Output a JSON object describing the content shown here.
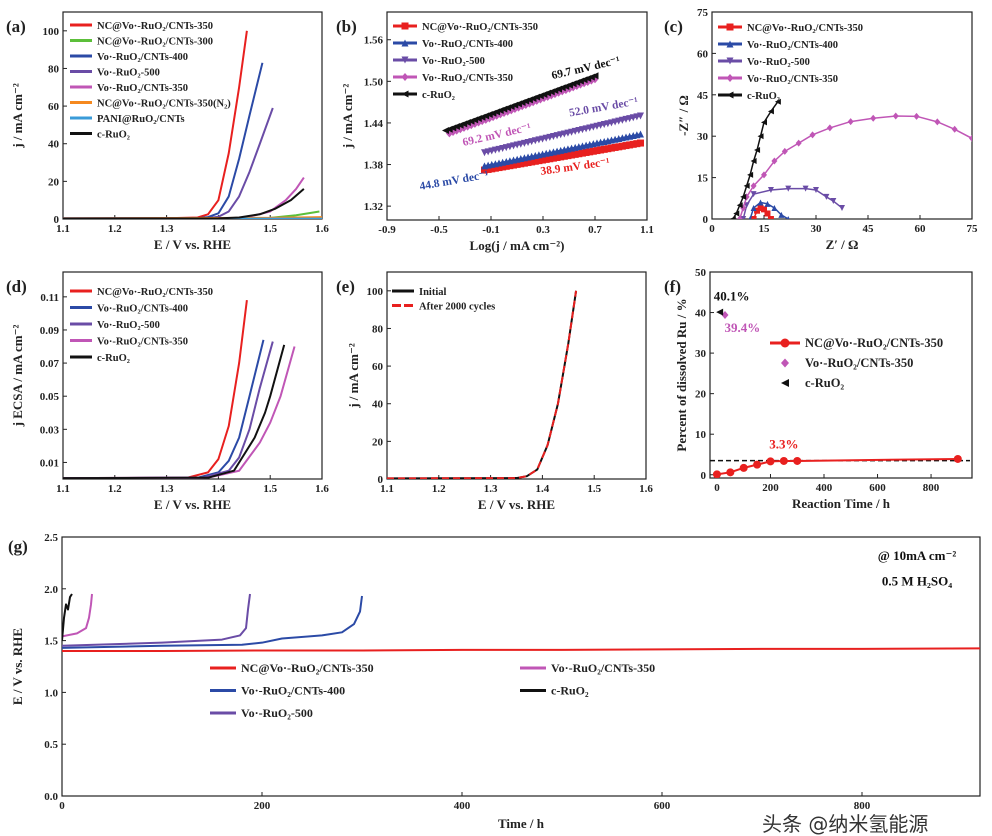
{
  "colors": {
    "red": "#e8201f",
    "green": "#5cbf3a",
    "blue": "#2b4aa6",
    "purple": "#6a4ca6",
    "magenta": "#c056b6",
    "orange": "#f5891f",
    "lightblue": "#3a9bd8",
    "black": "#111111"
  },
  "watermark": "头条 @纳米氢能源",
  "chart_data": [
    {
      "id": "a",
      "panel_label": "(a)",
      "type": "line",
      "xlabel": "E / V vs. RHE",
      "ylabel": "j / mA cm⁻²",
      "xlim": [
        1.1,
        1.6
      ],
      "ylim": [
        0,
        110
      ],
      "xticks": [
        1.1,
        1.2,
        1.3,
        1.4,
        1.5,
        1.6
      ],
      "xtick_labels": [
        "1.1",
        "1.2",
        "1.3",
        "1.4",
        "1.5",
        "1.6"
      ],
      "yticks": [
        0,
        20,
        40,
        60,
        80,
        100
      ],
      "ytick_labels": [
        "0",
        "20",
        "40",
        "60",
        "80",
        "100"
      ],
      "legend": "top-left",
      "series": [
        {
          "name": "NC@Vo·-RuO₂/CNTs-350",
          "color": "red",
          "x": [
            1.1,
            1.3,
            1.36,
            1.38,
            1.4,
            1.42,
            1.44,
            1.455
          ],
          "y": [
            0.3,
            0.4,
            0.8,
            2.5,
            10,
            35,
            70,
            100
          ]
        },
        {
          "name": "NC@Vo·-RuO₂/CNTs-300",
          "color": "green",
          "x": [
            1.1,
            1.45,
            1.5,
            1.55,
            1.595
          ],
          "y": [
            0.2,
            0.3,
            0.6,
            2,
            4
          ]
        },
        {
          "name": "Vo·-RuO₂/CNTs-400",
          "color": "blue",
          "x": [
            1.1,
            1.36,
            1.38,
            1.4,
            1.42,
            1.44,
            1.46,
            1.485
          ],
          "y": [
            0.3,
            0.4,
            1,
            3,
            12,
            32,
            55,
            83
          ]
        },
        {
          "name": "Vo·-RuO₂-500",
          "color": "purple",
          "x": [
            1.1,
            1.38,
            1.4,
            1.42,
            1.44,
            1.46,
            1.48,
            1.505
          ],
          "y": [
            0.3,
            0.5,
            1.2,
            4,
            12,
            25,
            40,
            59
          ]
        },
        {
          "name": "Vo·-RuO₂/CNTs-350",
          "color": "magenta",
          "x": [
            1.1,
            1.42,
            1.45,
            1.5,
            1.53,
            1.55,
            1.565
          ],
          "y": [
            0.2,
            0.3,
            0.6,
            4,
            10,
            16,
            22
          ]
        },
        {
          "name": "NC@Vo·-RuO₂/CNTs-350(N₂)",
          "color": "orange",
          "x": [
            1.1,
            1.5,
            1.6
          ],
          "y": [
            0.3,
            0.6,
            1.0
          ]
        },
        {
          "name": "PANI@RuO₂/CNTs",
          "color": "lightblue",
          "x": [
            1.1,
            1.6
          ],
          "y": [
            0.1,
            0.2
          ]
        },
        {
          "name": "c-RuO₂",
          "color": "black",
          "x": [
            1.1,
            1.4,
            1.44,
            1.48,
            1.51,
            1.54,
            1.565
          ],
          "y": [
            0.2,
            0.3,
            0.8,
            2.5,
            5.5,
            10,
            16
          ]
        }
      ]
    },
    {
      "id": "b",
      "panel_label": "(b)",
      "type": "line",
      "xlabel": "Log(j / mA cm⁻²)",
      "ylabel": "j / mA cm⁻²",
      "xlim": [
        -0.9,
        1.1
      ],
      "ylim": [
        1.3,
        1.6
      ],
      "xticks": [
        -0.9,
        -0.5,
        -0.1,
        0.3,
        0.7,
        1.1
      ],
      "xtick_labels": [
        "-0.9",
        "-0.5",
        "-0.1",
        "0.3",
        "0.7",
        "1.1"
      ],
      "yticks": [
        1.32,
        1.38,
        1.44,
        1.5,
        1.56
      ],
      "ytick_labels": [
        "1.32",
        "1.38",
        "1.44",
        "1.50",
        "1.56"
      ],
      "legend": "top-left",
      "series": [
        {
          "name": "NC@Vo·-RuO₂/CNTs-350",
          "color": "red",
          "marker": "square",
          "x": [
            -0.15,
            1.05
          ],
          "y": [
            1.372,
            1.411
          ]
        },
        {
          "name": "Vo·-RuO₂/CNTs-400",
          "color": "blue",
          "marker": "triangle-up",
          "x": [
            -0.15,
            1.05
          ],
          "y": [
            1.378,
            1.424
          ]
        },
        {
          "name": "Vo·-RuO₂-500",
          "color": "purple",
          "marker": "triangle-down",
          "x": [
            -0.15,
            1.05
          ],
          "y": [
            1.397,
            1.45
          ]
        },
        {
          "name": "Vo·-RuO₂/CNTs-350",
          "color": "magenta",
          "marker": "diamond",
          "x": [
            -0.42,
            0.7
          ],
          "y": [
            1.425,
            1.503
          ]
        },
        {
          "name": "c-RuO₂",
          "color": "black",
          "marker": "triangle-left",
          "x": [
            -0.45,
            0.7
          ],
          "y": [
            1.429,
            1.508
          ]
        }
      ],
      "annotations": [
        {
          "text": "69.7 mV dec⁻¹",
          "color": "black",
          "x": 0.35,
          "y": 1.513,
          "angle": -13
        },
        {
          "text": "69.2 mV dec⁻¹",
          "color": "magenta",
          "x": -0.05,
          "y": 1.418,
          "angle": -13
        },
        {
          "text": "52.0 mV dec⁻¹",
          "color": "purple",
          "x": 0.77,
          "y": 1.458,
          "angle": -10
        },
        {
          "text": "44.8 mV dec⁻¹",
          "color": "blue",
          "x": -0.38,
          "y": 1.352,
          "angle": -10
        },
        {
          "text": "38.9 mV dec⁻¹",
          "color": "red",
          "x": 0.55,
          "y": 1.372,
          "angle": -8
        }
      ]
    },
    {
      "id": "c",
      "panel_label": "(c)",
      "type": "line",
      "xlabel": "Z′ / Ω",
      "ylabel": "-Z″ / Ω",
      "xlim": [
        0,
        75
      ],
      "ylim": [
        0,
        75
      ],
      "xticks": [
        0,
        15,
        30,
        45,
        60,
        75
      ],
      "xtick_labels": [
        "0",
        "15",
        "30",
        "45",
        "60",
        "75"
      ],
      "yticks": [
        0,
        15,
        30,
        45,
        60,
        75
      ],
      "ytick_labels": [
        "0",
        "15",
        "30",
        "45",
        "60",
        "75"
      ],
      "legend": "top-left",
      "series": [
        {
          "name": "NC@Vo·-RuO₂/CNTs-350",
          "color": "red",
          "marker": "square",
          "x": [
            12,
            13,
            14,
            15,
            16,
            17
          ],
          "y": [
            0,
            3,
            4,
            3.5,
            2,
            0
          ]
        },
        {
          "name": "Vo·-RuO₂/CNTs-400",
          "color": "blue",
          "marker": "triangle-up",
          "x": [
            11,
            12,
            14,
            16,
            18,
            20,
            22
          ],
          "y": [
            0,
            4,
            6,
            5.5,
            4,
            1.5,
            0
          ]
        },
        {
          "name": "Vo·-RuO₂-500",
          "color": "purple",
          "marker": "triangle-down",
          "x": [
            9,
            10,
            12,
            17,
            22,
            27,
            30,
            33,
            35,
            37.5
          ],
          "y": [
            0,
            5,
            9,
            10.5,
            11,
            11,
            10.5,
            8,
            6.5,
            4
          ]
        },
        {
          "name": "Vo·-RuO₂/CNTs-350",
          "color": "magenta",
          "marker": "diamond",
          "x": [
            8,
            9,
            10,
            12,
            15,
            18,
            21,
            25,
            29,
            34,
            40,
            46.5,
            53,
            59,
            65,
            70,
            75
          ],
          "y": [
            0,
            4,
            8,
            12,
            16,
            21,
            24.5,
            27.5,
            30.5,
            33,
            35.3,
            36.5,
            37.3,
            37.2,
            35.2,
            32.5,
            29.2
          ]
        },
        {
          "name": "c-RuO₂",
          "color": "black",
          "marker": "triangle-left",
          "x": [
            6,
            7,
            8,
            9,
            10,
            11,
            12,
            13,
            14,
            15,
            17,
            19
          ],
          "y": [
            0,
            2,
            5,
            8,
            12,
            16,
            21,
            25,
            30,
            35,
            39,
            42.5
          ]
        }
      ]
    },
    {
      "id": "d",
      "panel_label": "(d)",
      "type": "line",
      "xlabel": "E / V vs. RHE",
      "ylabel": "j ECSA / mA cm⁻²",
      "xlim": [
        1.1,
        1.6
      ],
      "ylim": [
        0,
        0.125
      ],
      "xticks": [
        1.1,
        1.2,
        1.3,
        1.4,
        1.5,
        1.6
      ],
      "xtick_labels": [
        "1.1",
        "1.2",
        "1.3",
        "1.4",
        "1.5",
        "1.6"
      ],
      "yticks": [
        0.01,
        0.03,
        0.05,
        0.07,
        0.09,
        0.11
      ],
      "ytick_labels": [
        "0.01",
        "0.03",
        "0.05",
        "0.07",
        "0.09",
        "0.11"
      ],
      "legend": "top-left",
      "series": [
        {
          "name": "NC@Vo·-RuO₂/CNTs-350",
          "color": "red",
          "x": [
            1.1,
            1.34,
            1.38,
            1.4,
            1.42,
            1.44,
            1.455
          ],
          "y": [
            0.0005,
            0.0008,
            0.004,
            0.012,
            0.032,
            0.07,
            0.108
          ]
        },
        {
          "name": "Vo·-RuO₂/CNTs-400",
          "color": "blue",
          "x": [
            1.1,
            1.36,
            1.4,
            1.42,
            1.44,
            1.46,
            1.487
          ],
          "y": [
            0.0005,
            0.0008,
            0.004,
            0.011,
            0.025,
            0.05,
            0.084
          ]
        },
        {
          "name": "Vo·-RuO₂-500",
          "color": "purple",
          "x": [
            1.1,
            1.37,
            1.42,
            1.44,
            1.46,
            1.48,
            1.505
          ],
          "y": [
            0.0005,
            0.0008,
            0.005,
            0.013,
            0.03,
            0.055,
            0.083
          ]
        },
        {
          "name": "Vo·-RuO₂/CNTs-350",
          "color": "magenta",
          "x": [
            1.1,
            1.38,
            1.44,
            1.48,
            1.5,
            1.52,
            1.547
          ],
          "y": [
            0.0005,
            0.0008,
            0.005,
            0.022,
            0.034,
            0.05,
            0.08
          ]
        },
        {
          "name": "c-RuO₂",
          "color": "black",
          "x": [
            1.1,
            1.38,
            1.43,
            1.47,
            1.49,
            1.5,
            1.527
          ],
          "y": [
            0.0005,
            0.0008,
            0.005,
            0.025,
            0.04,
            0.05,
            0.081
          ]
        }
      ]
    },
    {
      "id": "e",
      "panel_label": "(e)",
      "type": "line",
      "xlabel": "E / V vs. RHE",
      "ylabel": "j / mA cm⁻²",
      "xlim": [
        1.1,
        1.6
      ],
      "ylim": [
        0,
        110
      ],
      "xticks": [
        1.1,
        1.2,
        1.3,
        1.4,
        1.5,
        1.6
      ],
      "xtick_labels": [
        "1.1",
        "1.2",
        "1.3",
        "1.4",
        "1.5",
        "1.6"
      ],
      "yticks": [
        0,
        20,
        40,
        60,
        80,
        100
      ],
      "ytick_labels": [
        "0",
        "20",
        "40",
        "60",
        "80",
        "100"
      ],
      "legend": "top-left",
      "series": [
        {
          "name": "Initial",
          "color": "black",
          "x": [
            1.1,
            1.35,
            1.37,
            1.39,
            1.41,
            1.43,
            1.45,
            1.465
          ],
          "y": [
            0.3,
            0.5,
            1.5,
            5,
            18,
            40,
            72,
            100
          ]
        },
        {
          "name": "After 2000 cycles",
          "color": "red",
          "dash": true,
          "x": [
            1.1,
            1.35,
            1.37,
            1.39,
            1.41,
            1.43,
            1.45,
            1.465
          ],
          "y": [
            0.3,
            0.5,
            1.5,
            5,
            18,
            40,
            72,
            100
          ]
        }
      ]
    },
    {
      "id": "f",
      "panel_label": "(f)",
      "type": "scatter",
      "xlabel": "Reaction Time / h",
      "ylabel": "Percent of dissolved Ru / %",
      "xlim": [
        -26,
        953
      ],
      "ylim": [
        -0.8,
        50
      ],
      "xticks": [
        0,
        200,
        400,
        600,
        800
      ],
      "xtick_labels": [
        "0",
        "200",
        "400",
        "600",
        "800"
      ],
      "yticks": [
        0,
        10,
        20,
        30,
        40,
        50
      ],
      "ytick_labels": [
        "0",
        "10",
        "20",
        "30",
        "40",
        "50"
      ],
      "legend": "center-right",
      "reference_line": {
        "y": 3.5,
        "style": "dashed",
        "color": "black"
      },
      "series": [
        {
          "name": "NC@Vo·-RuO₂/CNTs-350",
          "color": "red",
          "marker": "circle",
          "line": true,
          "x": [
            0,
            50,
            100,
            150,
            200,
            250,
            300,
            900
          ],
          "y": [
            0.1,
            0.6,
            1.7,
            2.5,
            3.3,
            3.4,
            3.4,
            3.9
          ]
        },
        {
          "name": "Vo·-RuO₂/CNTs-350",
          "color": "magenta",
          "marker": "diamond",
          "line": false,
          "x": [
            30
          ],
          "y": [
            39.4
          ]
        },
        {
          "name": "c-RuO₂",
          "color": "black",
          "marker": "triangle-left",
          "line": false,
          "x": [
            10
          ],
          "y": [
            40.1
          ]
        }
      ],
      "annotations": [
        {
          "text": "40.1%",
          "color": "black",
          "x": 55,
          "y": 43
        },
        {
          "text": "39.4%",
          "color": "magenta",
          "x": 95,
          "y": 35.2
        },
        {
          "text": "3.3%",
          "color": "red",
          "x": 250,
          "y": 6.5
        }
      ]
    },
    {
      "id": "g",
      "panel_label": "(g)",
      "type": "line",
      "xlabel": "Time / h",
      "ylabel": "E / V vs. RHE",
      "xlim": [
        0,
        918
      ],
      "ylim": [
        0,
        2.5
      ],
      "xticks": [
        0,
        200,
        400,
        600,
        800
      ],
      "xtick_labels": [
        "0",
        "200",
        "400",
        "600",
        "800"
      ],
      "yticks": [
        0,
        0.5,
        1.0,
        1.5,
        2.0,
        2.5
      ],
      "ytick_labels": [
        "0.0",
        "0.5",
        "1.0",
        "1.5",
        "2.0",
        "2.5"
      ],
      "legend": "center",
      "series": [
        {
          "name": "NC@Vo·-RuO₂/CNTs-350",
          "color": "red",
          "x": [
            0,
            100,
            200,
            300,
            400,
            500,
            600,
            700,
            800,
            918
          ],
          "y": [
            1.4,
            1.4,
            1.405,
            1.405,
            1.41,
            1.41,
            1.415,
            1.42,
            1.42,
            1.425
          ]
        },
        {
          "name": "Vo·-RuO₂/CNTs-400",
          "color": "blue",
          "x": [
            0,
            100,
            180,
            200,
            220,
            260,
            280,
            292,
            298,
            300
          ],
          "y": [
            1.43,
            1.45,
            1.46,
            1.48,
            1.52,
            1.55,
            1.58,
            1.66,
            1.78,
            1.93
          ]
        },
        {
          "name": "Vo·-RuO₂-500",
          "color": "purple",
          "x": [
            0,
            100,
            160,
            178,
            184,
            186,
            188
          ],
          "y": [
            1.45,
            1.48,
            1.51,
            1.55,
            1.62,
            1.8,
            1.95
          ]
        },
        {
          "name": "Vo·-RuO₂/CNTs-350",
          "color": "magenta",
          "x": [
            0,
            15,
            24,
            27,
            29,
            30
          ],
          "y": [
            1.54,
            1.57,
            1.62,
            1.72,
            1.85,
            1.95
          ]
        },
        {
          "name": "c-RuO₂",
          "color": "black",
          "x": [
            0,
            2,
            4,
            6,
            8,
            10
          ],
          "y": [
            1.5,
            1.72,
            1.85,
            1.8,
            1.92,
            1.95
          ]
        }
      ],
      "annotations": [
        {
          "text": "@ 10mA cm⁻²",
          "color": "black",
          "x": 855,
          "y": 2.28
        },
        {
          "text": "0.5 M H₂SO₄",
          "color": "black",
          "x": 855,
          "y": 2.03
        }
      ]
    }
  ]
}
